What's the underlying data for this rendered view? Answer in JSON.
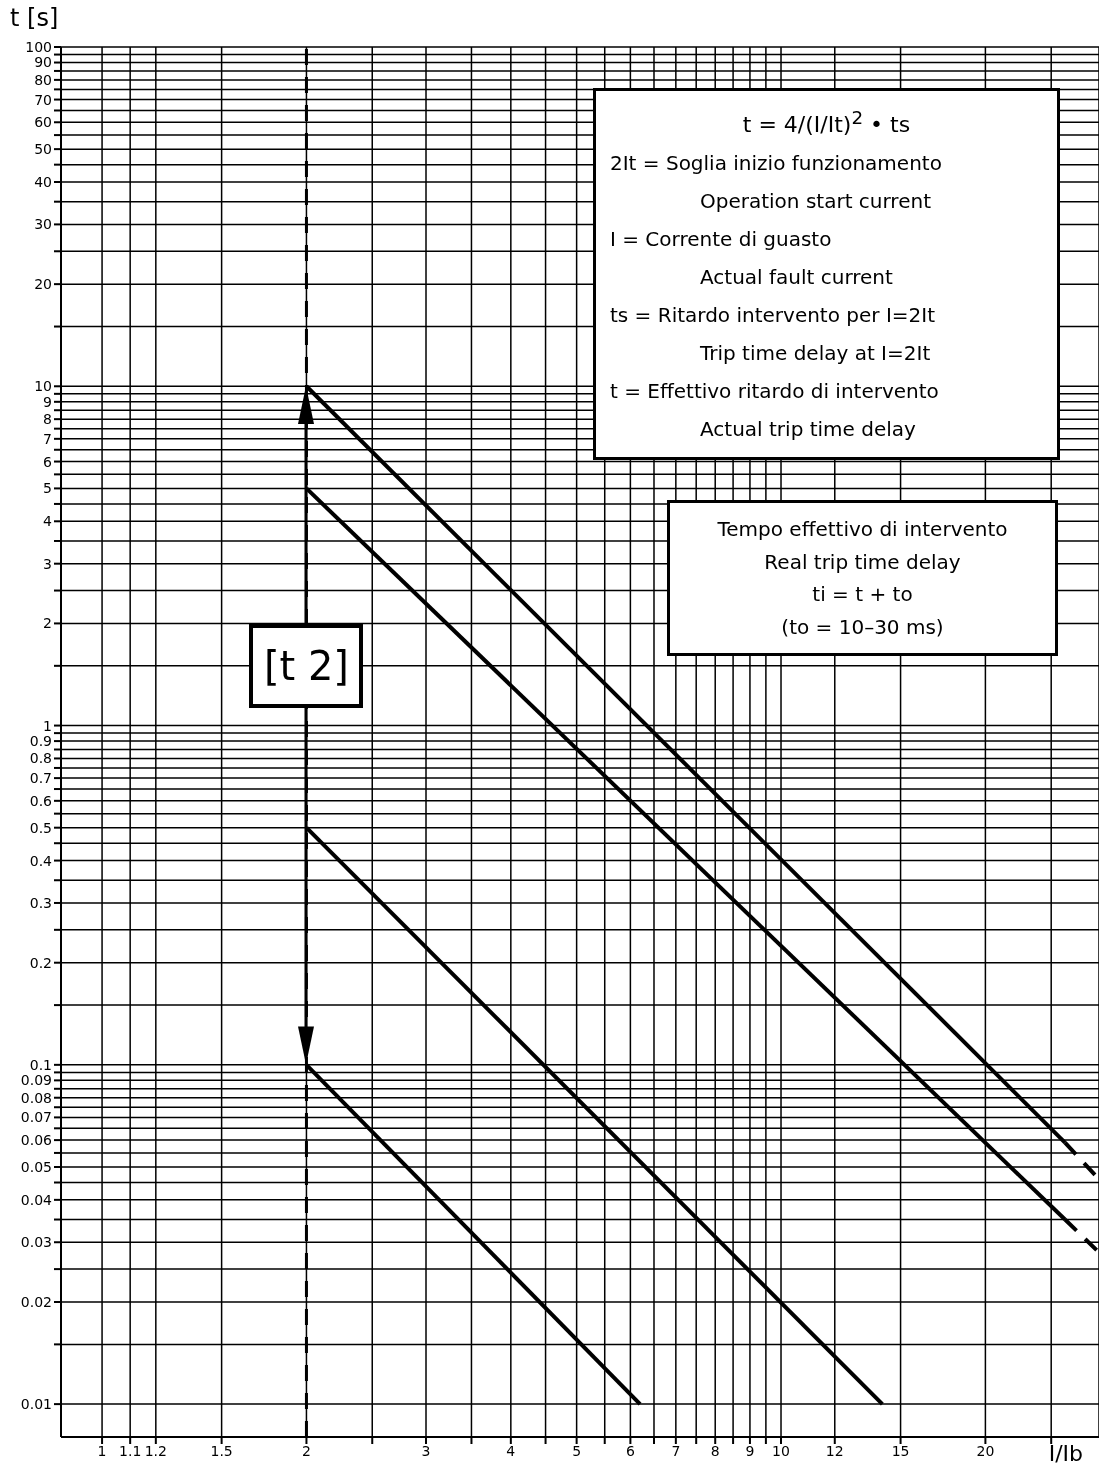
{
  "chart_data": {
    "type": "line",
    "xlabel": "I/Ib",
    "ylabel": "t [s]",
    "log": "xy",
    "grid": true,
    "marker": "none",
    "xlim": [
      0.87,
      29.4
    ],
    "ylim": [
      0.008,
      100
    ],
    "xticks": [
      1,
      1.1,
      1.2,
      1.5,
      2,
      {
        "value": 2.5,
        "label": null
      },
      3,
      {
        "value": 3.5,
        "label": null
      },
      4,
      {
        "value": 4.5,
        "label": null
      },
      5,
      {
        "value": 5.5,
        "label": null
      },
      6,
      {
        "value": 6.5,
        "label": null
      },
      7,
      {
        "value": 7.5,
        "label": null
      },
      8,
      {
        "value": 8.5,
        "label": null
      },
      9,
      {
        "value": 9.5,
        "label": null
      },
      10,
      12,
      15,
      20,
      {
        "value": 25,
        "label": null
      }
    ],
    "yticks": [
      0.01,
      {
        "value": 0.015,
        "label": null
      },
      0.02,
      {
        "value": 0.025,
        "label": null
      },
      0.03,
      {
        "value": 0.035,
        "label": null
      },
      0.04,
      {
        "value": 0.045,
        "label": null
      },
      0.05,
      {
        "value": 0.055,
        "label": null
      },
      0.06,
      {
        "value": 0.065,
        "label": null
      },
      0.07,
      {
        "value": 0.075,
        "label": null
      },
      0.08,
      {
        "value": 0.085,
        "label": null
      },
      0.09,
      {
        "value": 0.095,
        "label": null
      },
      0.1,
      {
        "value": 0.15,
        "label": null
      },
      0.2,
      {
        "value": 0.25,
        "label": null
      },
      0.3,
      {
        "value": 0.35,
        "label": null
      },
      0.4,
      {
        "value": 0.45,
        "label": null
      },
      0.5,
      {
        "value": 0.55,
        "label": null
      },
      0.6,
      {
        "value": 0.65,
        "label": null
      },
      0.7,
      {
        "value": 0.75,
        "label": null
      },
      0.8,
      {
        "value": 0.85,
        "label": null
      },
      0.9,
      {
        "value": 0.95,
        "label": null
      },
      1,
      {
        "value": 1.5,
        "label": null
      },
      2,
      {
        "value": 2.5,
        "label": null
      },
      3,
      {
        "value": 3.5,
        "label": null
      },
      4,
      {
        "value": 4.5,
        "label": null
      },
      5,
      {
        "value": 5.5,
        "label": null
      },
      6,
      {
        "value": 6.5,
        "label": null
      },
      7,
      {
        "value": 7.5,
        "label": null
      },
      8,
      {
        "value": 8.5,
        "label": null
      },
      9,
      {
        "value": 9.5,
        "label": null
      },
      10,
      {
        "value": 15,
        "label": null
      },
      20,
      {
        "value": 25,
        "label": null
      },
      30,
      {
        "value": 35,
        "label": null
      },
      40,
      {
        "value": 45,
        "label": null
      },
      50,
      {
        "value": 55,
        "label": null
      },
      60,
      {
        "value": 65,
        "label": null
      },
      70,
      {
        "value": 75,
        "label": null
      },
      80,
      {
        "value": 85,
        "label": null
      },
      90,
      {
        "value": 95,
        "label": null
      },
      100
    ],
    "series": [
      {
        "color": "#000000",
        "line_style": "solid",
        "x": [
          2,
          26.2
        ],
        "values": [
          10,
          0.059
        ]
      },
      {
        "color": "#000000",
        "line_style": "dashed",
        "x": [
          26.2,
          29.4
        ],
        "values": [
          0.059,
          0.046
        ]
      },
      {
        "color": "#000000",
        "line_style": "solid",
        "x": [
          2,
          26.2
        ],
        "values": [
          5,
          0.035
        ]
      },
      {
        "color": "#000000",
        "line_style": "dashed",
        "x": [
          26.2,
          29.4
        ],
        "values": [
          0.035,
          0.028
        ]
      },
      {
        "color": "#000000",
        "line_style": "solid",
        "x": [
          2,
          14.1
        ],
        "values": [
          0.5,
          0.01
        ]
      },
      {
        "color": "#000000",
        "line_style": "solid",
        "x": [
          2,
          6.2
        ],
        "values": [
          0.1,
          0.01
        ]
      }
    ],
    "ref_lines": [
      {
        "axis": "x",
        "value": 2,
        "color": "#000000",
        "line_style": "dashed"
      }
    ],
    "annotations": [
      "t = 4/(I/It)$^{2}$ • ts",
      "2It = Soglia inizio funzionamento",
      "Operation start current",
      "I = Corrente di guasto",
      "Actual fault current",
      "ts = Ritardo intervento per I=2It",
      "Trip time delay at I=2It",
      "t = Effettivo ritardo di intervento",
      "Actual trip time delay",
      "Tempo effettivo di intervento",
      "Real trip time delay",
      "ti = t + to",
      "(to = 10–30 ms)",
      {
        "text": "[t 2]",
        "x": 2,
        "y": 1.5
      }
    ]
  }
}
